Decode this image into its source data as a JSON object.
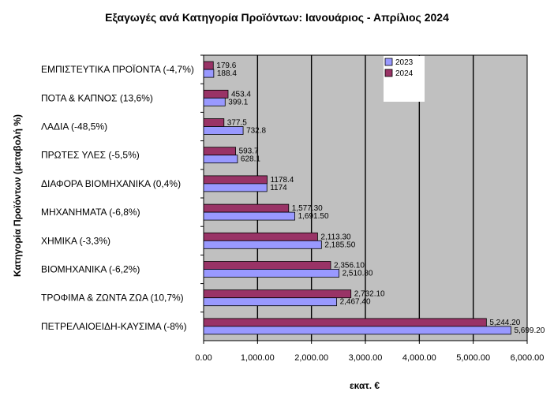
{
  "chart_data": {
    "type": "bar",
    "orientation": "horizontal",
    "title": "Εξαγωγές ανά Κατηγορία Προϊόντων: Ιανουάριος - Απρίλιος 2024",
    "xlabel": "εκατ. €",
    "ylabel": "Κατηγορία Προϊόντων (μεταβολή %)",
    "xlim": [
      0,
      6000
    ],
    "x_ticks": [
      "0.00",
      "1,000.00",
      "2,000.00",
      "3,000.00",
      "4,000.00",
      "5,000.00",
      "6,000.00"
    ],
    "grid": true,
    "legend_position": "top-right",
    "categories": [
      "ΕΜΠΙΣΤΕΥΤΙΚΑ ΠΡΟΪΟΝΤΑ (-4,7%)",
      "ΠΟΤΑ & ΚΑΠΝΟΣ (13,6%)",
      "ΛΑΔΙΑ (-48,5%)",
      "ΠΡΩΤΕΣ ΥΛΕΣ (-5,5%)",
      "ΔΙΑΦΟΡΑ ΒΙΟΜΗΧΑΝΙΚΑ (0,4%)",
      "ΜΗΧΑΝΗΜΑΤΑ (-6,8%)",
      "ΧΗΜΙΚΑ (-3,3%)",
      "ΒΙΟΜΗΧΑΝΙΚΑ (-6,2%)",
      "ΤΡΟΦΙΜΑ & ΖΩΝΤΑ ΖΩΑ (10,7%)",
      "ΠΕΤΡΕΛΑΙΟΕΙΔΗ-ΚΑΥΣΙΜΑ (-8%)"
    ],
    "series": [
      {
        "name": "2024",
        "color": "#993366",
        "values": [
          179.6,
          453.4,
          377.5,
          593.7,
          1178.4,
          1577.3,
          2113.3,
          2356.1,
          2732.1,
          5244.2
        ],
        "labels": [
          "179.6",
          "453.4",
          "377.5",
          "593.7",
          "1178.4",
          "1,577.30",
          "2,113.30",
          "2,356.10",
          "2,732.10",
          "5,244.20"
        ]
      },
      {
        "name": "2023",
        "color": "#9999ff",
        "values": [
          188.4,
          399.1,
          732.8,
          628.1,
          1174,
          1691.5,
          2185.5,
          2510.8,
          2467.4,
          5699.2
        ],
        "labels": [
          "188.4",
          "399.1",
          "732.8",
          "628.1",
          "1174",
          "1,691.50",
          "2,185.50",
          "2,510.80",
          "2,467.40",
          "5,699.20"
        ]
      }
    ],
    "legend": [
      {
        "name": "2023",
        "color": "#9999ff"
      },
      {
        "name": "2024",
        "color": "#993366"
      }
    ],
    "plot_background": "#c0c0c0"
  }
}
